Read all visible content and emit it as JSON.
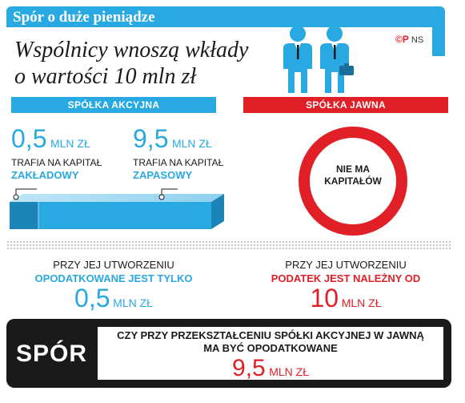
{
  "header": {
    "title": "Spór o duże pieniądze"
  },
  "headline": {
    "line1": "Wspólnicy wnoszą wkłady",
    "line2": "o wartości 10 mln zł"
  },
  "brand": {
    "mark": "©P",
    "initials": "NS"
  },
  "left": {
    "label": "SPÓŁKA AKCYJNA",
    "item1": {
      "value": "0,5",
      "unit": "MLN ZŁ",
      "text": "TRAFIA NA KAPITAŁ",
      "highlight": "ZAKŁADOWY"
    },
    "item2": {
      "value": "9,5",
      "unit": "MLN ZŁ",
      "text": "TRAFIA NA KAPITAŁ",
      "highlight": "ZAPASOWY"
    },
    "bottom": {
      "line1": "PRZY JEJ UTWORZENIU",
      "line2": "OPODATKOWANE JEST TYLKO",
      "value": "0,5",
      "unit": "MLN ZŁ"
    }
  },
  "right": {
    "label": "SPÓŁKA JAWNA",
    "circle": {
      "line1": "NIE MA",
      "line2": "KAPITAŁÓW"
    },
    "bottom": {
      "line1": "PRZY JEJ UTWORZENIU",
      "line2": "PODATEK JEST NALEŻNY OD",
      "value": "10",
      "unit": "MLN ZŁ"
    }
  },
  "dispute": {
    "label": "SPÓR",
    "line1": "CZY PRZY PRZEKSZTAŁCENIU SPÓŁKI AKCYJNEJ W JAWNĄ",
    "line2": "MA BYĆ OPODATKOWANE",
    "value": "9,5",
    "unit": "MLN ZŁ"
  },
  "colors": {
    "blue": "#29a9e1",
    "red": "#e01f26",
    "dark": "#1a1a1a"
  }
}
